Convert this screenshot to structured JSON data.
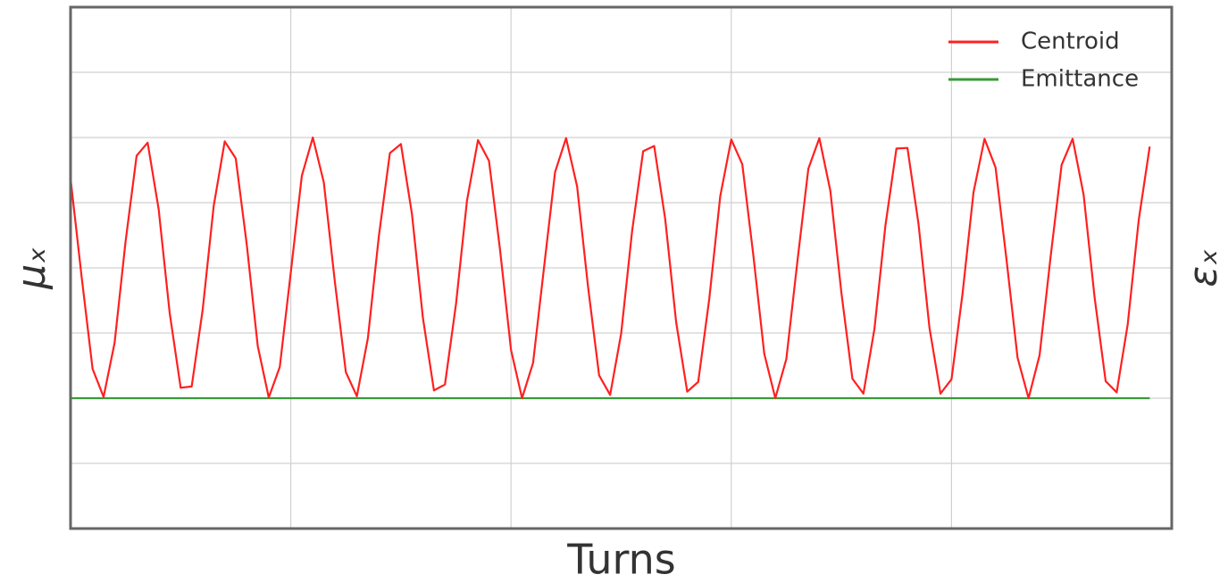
{
  "chart_data": {
    "type": "line",
    "x_label": "Turns",
    "y_label": "μₓ",
    "y2_label": "εₓ",
    "y_label_color": "#ff2020",
    "y2_label_color": "#3a9a3a",
    "xlim": [
      0,
      5
    ],
    "xticks": [
      1,
      2,
      3,
      4
    ],
    "ylim": [
      -1,
      7
    ],
    "yticks": [
      0,
      1,
      2,
      3,
      4,
      5,
      6
    ],
    "grid": true,
    "legend": "upper right",
    "x": [
      0,
      0.05,
      0.1,
      0.15,
      0.2,
      0.25,
      0.3,
      0.35,
      0.4,
      0.45,
      0.5,
      0.55,
      0.6,
      0.65,
      0.7,
      0.75,
      0.8,
      0.85,
      0.9,
      0.95,
      1,
      1.05,
      1.1,
      1.15,
      1.2,
      1.25,
      1.3,
      1.35,
      1.4,
      1.45,
      1.5,
      1.55,
      1.6,
      1.65,
      1.7,
      1.75,
      1.8,
      1.85,
      1.9,
      1.95,
      2,
      2.05,
      2.1,
      2.15,
      2.2,
      2.25,
      2.3,
      2.35,
      2.4,
      2.45,
      2.5,
      2.55,
      2.6,
      2.65,
      2.7,
      2.75,
      2.8,
      2.85,
      2.9,
      2.95,
      3,
      3.05,
      3.1,
      3.15,
      3.2,
      3.25,
      3.3,
      3.35,
      3.4,
      3.45,
      3.5,
      3.55,
      3.6,
      3.65,
      3.7,
      3.75,
      3.8,
      3.85,
      3.9,
      3.95,
      4,
      4.05,
      4.1,
      4.15,
      4.2,
      4.25,
      4.3,
      4.35,
      4.4,
      4.45,
      4.5,
      4.55,
      4.6,
      4.65,
      4.7,
      4.75,
      4.8,
      4.85,
      4.9
    ],
    "series": [
      {
        "name": "Centroid",
        "color": "#ff2020",
        "values": [
          4.37,
          2.87,
          1.45,
          1.02,
          1.85,
          3.41,
          4.72,
          4.92,
          3.9,
          2.31,
          1.16,
          1.18,
          2.36,
          3.95,
          4.94,
          4.68,
          3.36,
          1.8,
          1.01,
          1.48,
          2.93,
          4.41,
          5.0,
          4.31,
          2.79,
          1.4,
          1.03,
          1.92,
          3.49,
          4.76,
          4.9,
          3.83,
          2.23,
          1.12,
          1.21,
          2.44,
          4.03,
          4.96,
          4.64,
          3.28,
          1.74,
          1.0,
          1.54,
          3.01,
          4.47,
          4.99,
          4.25,
          2.7,
          1.35,
          1.05,
          1.99,
          3.57,
          4.79,
          4.87,
          3.75,
          2.16,
          1.1,
          1.25,
          2.52,
          4.1,
          4.97,
          4.59,
          3.2,
          1.68,
          1.0,
          1.6,
          3.09,
          4.52,
          4.99,
          4.18,
          2.62,
          1.3,
          1.07,
          2.06,
          3.65,
          4.83,
          4.84,
          3.68,
          2.08,
          1.07,
          1.29,
          2.6,
          4.16,
          4.98,
          4.54,
          3.12,
          1.62,
          1.0,
          1.66,
          3.17,
          4.58,
          4.98,
          4.12,
          2.54,
          1.26,
          1.09,
          2.13,
          3.73,
          4.86
        ]
      },
      {
        "name": "Emittance",
        "color": "#3a9a3a",
        "values": [
          1,
          1,
          1,
          1,
          1,
          1,
          1,
          1,
          1,
          1,
          1,
          1,
          1,
          1,
          1,
          1,
          1,
          1,
          1,
          1,
          1,
          1,
          1,
          1,
          1,
          1,
          1,
          1,
          1,
          1,
          1,
          1,
          1,
          1,
          1,
          1,
          1,
          1,
          1,
          1,
          1,
          1,
          1,
          1,
          1,
          1,
          1,
          1,
          1,
          1,
          1,
          1,
          1,
          1,
          1,
          1,
          1,
          1,
          1,
          1,
          1,
          1,
          1,
          1,
          1,
          1,
          1,
          1,
          1,
          1,
          1,
          1,
          1,
          1,
          1,
          1,
          1,
          1,
          1,
          1,
          1,
          1,
          1,
          1,
          1,
          1,
          1,
          1,
          1,
          1,
          1,
          1,
          1,
          1,
          1,
          1,
          1,
          1,
          1
        ]
      }
    ]
  }
}
